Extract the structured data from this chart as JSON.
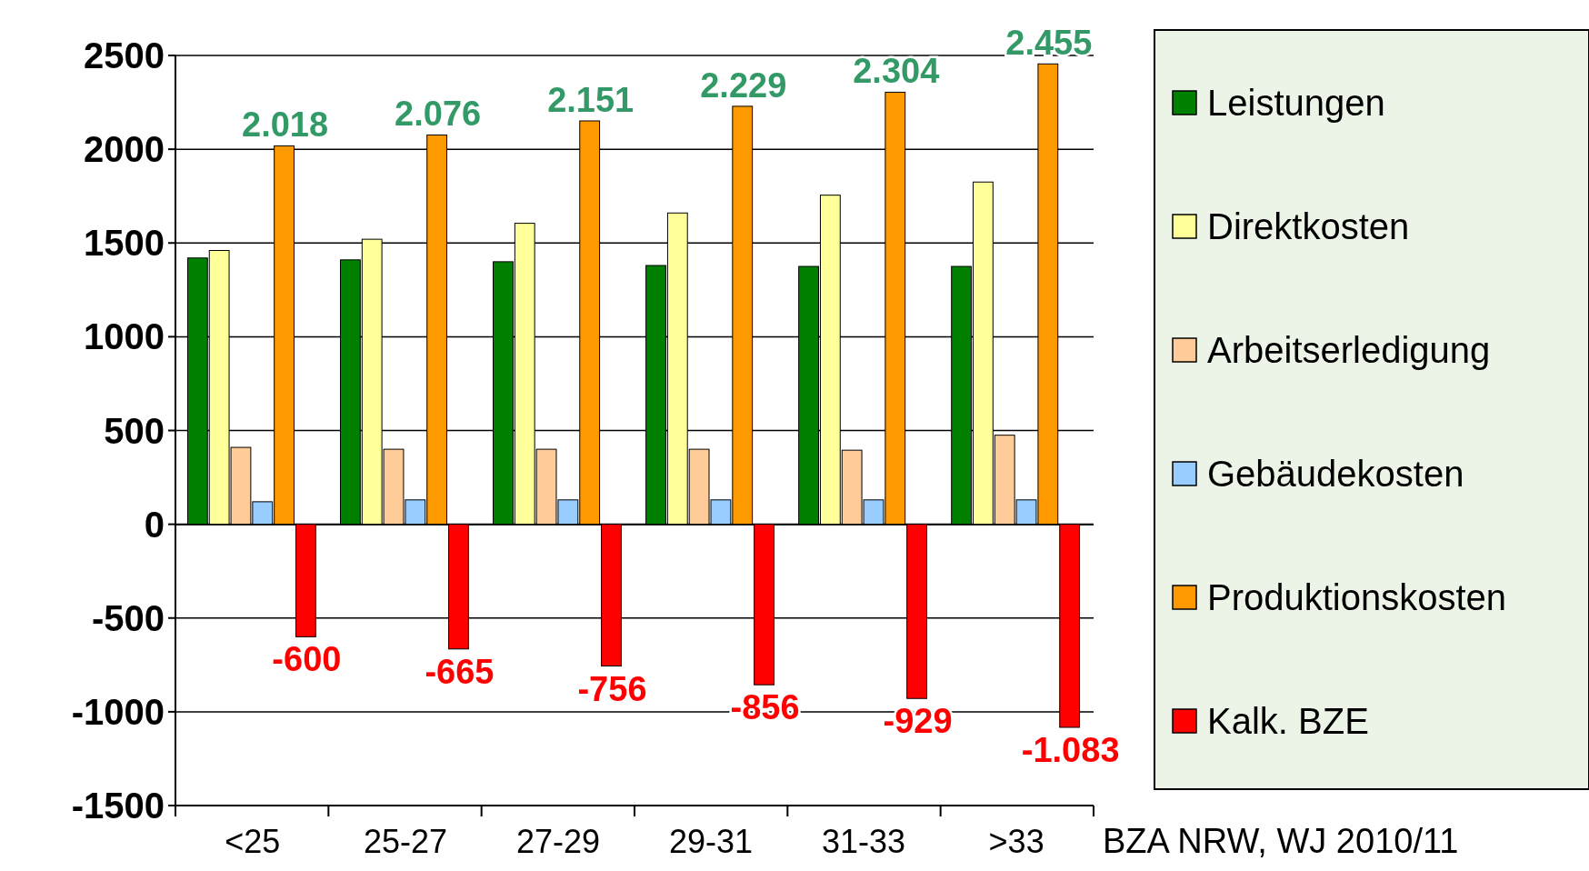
{
  "chart_data": {
    "type": "bar",
    "categories": [
      "<25",
      "25-27",
      "27-29",
      "29-31",
      "31-33",
      ">33"
    ],
    "series": [
      {
        "name": "Leistungen",
        "color": "#008000",
        "values": [
          1420,
          1410,
          1400,
          1380,
          1375,
          1375
        ]
      },
      {
        "name": "Direktkosten",
        "color": "#ffff99",
        "values": [
          1460,
          1520,
          1605,
          1660,
          1755,
          1825
        ]
      },
      {
        "name": "Arbeitserledigung",
        "color": "#ffcc99",
        "values": [
          410,
          400,
          400,
          400,
          395,
          475
        ]
      },
      {
        "name": "Gebäudekosten",
        "color": "#99ccff",
        "values": [
          120,
          130,
          130,
          130,
          130,
          130
        ]
      },
      {
        "name": "Produktionskosten",
        "color": "#ff9900",
        "values": [
          2018,
          2076,
          2151,
          2229,
          2304,
          2455
        ],
        "value_labels": [
          "2.018",
          "2.076",
          "2.151",
          "2.229",
          "2.304",
          "2.455"
        ]
      },
      {
        "name": "Kalk. BZE",
        "color": "#ff0000",
        "values": [
          -600,
          -665,
          -756,
          -856,
          -929,
          -1083
        ],
        "value_labels": [
          "-600",
          "-665",
          "-756",
          "-856",
          "-929",
          "-1.083"
        ]
      }
    ],
    "ylim": [
      -1500,
      2500
    ],
    "yticks": [
      -1500,
      -1000,
      -500,
      0,
      500,
      1000,
      1500,
      2000,
      2500
    ],
    "grid": "y",
    "legend": "right",
    "annotations": [
      "BZA NRW, WJ 2010/11"
    ]
  }
}
